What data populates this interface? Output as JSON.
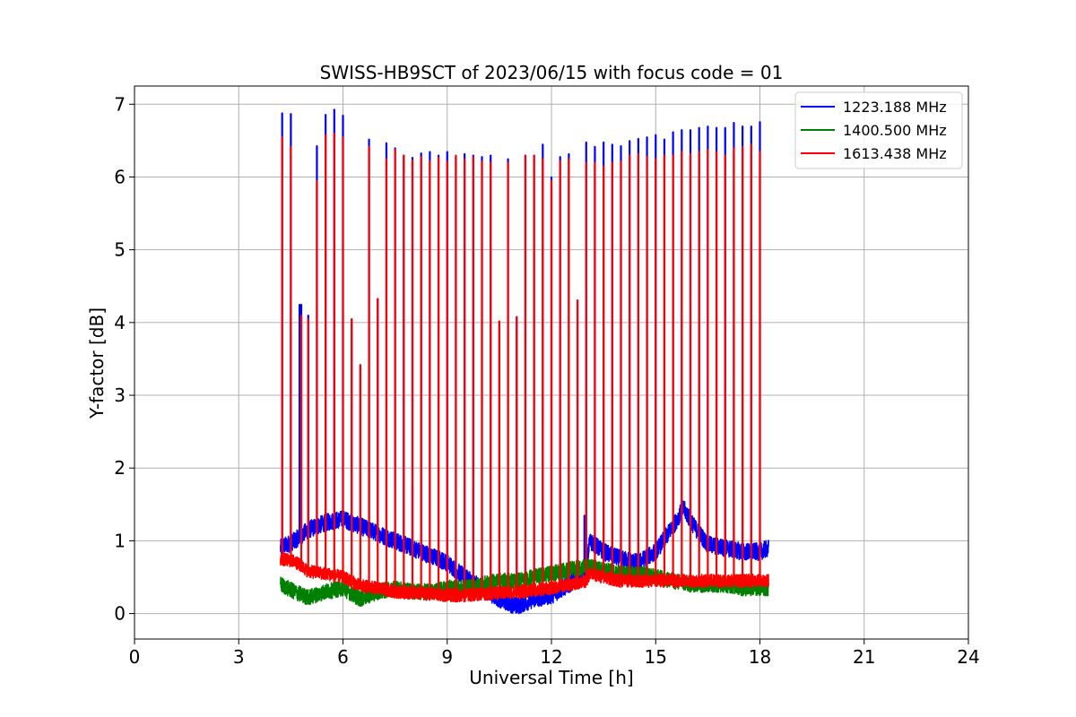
{
  "chart_data": {
    "type": "line",
    "title": "SWISS-HB9SCT of 2023/06/15 with focus code = 01",
    "xlabel": "Universal Time [h]",
    "ylabel": "Y-factor [dB]",
    "xlim": [
      0,
      24
    ],
    "ylim": [
      -0.35,
      7.25
    ],
    "xticks": [
      0,
      3,
      6,
      9,
      12,
      15,
      18,
      21,
      24
    ],
    "yticks": [
      0,
      1,
      2,
      3,
      4,
      5,
      6,
      7
    ],
    "grid": true,
    "legend_position": "top-right",
    "colors": {
      "1223.188 MHz": "#0000ff",
      "1400.500 MHz": "#008000",
      "1613.438 MHz": "#ff0000"
    },
    "series": [
      {
        "name": "1223.188 MHz",
        "color": "#0000ff",
        "baseline": [
          [
            4.2,
            0.9
          ],
          [
            4.6,
            1.0
          ],
          [
            5.0,
            1.15
          ],
          [
            5.5,
            1.25
          ],
          [
            6.0,
            1.3
          ],
          [
            6.5,
            1.2
          ],
          [
            7.0,
            1.1
          ],
          [
            7.5,
            1.0
          ],
          [
            8.0,
            0.9
          ],
          [
            8.5,
            0.8
          ],
          [
            9.0,
            0.7
          ],
          [
            9.5,
            0.5
          ],
          [
            10.0,
            0.35
          ],
          [
            10.5,
            0.2
          ],
          [
            11.0,
            0.1
          ],
          [
            11.5,
            0.2
          ],
          [
            12.0,
            0.25
          ],
          [
            12.5,
            0.4
          ],
          [
            13.0,
            0.6
          ],
          [
            13.1,
            1.0
          ],
          [
            13.5,
            0.85
          ],
          [
            14.0,
            0.75
          ],
          [
            14.5,
            0.7
          ],
          [
            15.0,
            0.85
          ],
          [
            15.5,
            1.2
          ],
          [
            15.8,
            1.45
          ],
          [
            16.1,
            1.2
          ],
          [
            16.5,
            0.95
          ],
          [
            17.0,
            0.9
          ],
          [
            17.5,
            0.85
          ],
          [
            18.0,
            0.85
          ],
          [
            18.25,
            0.9
          ]
        ],
        "noise": 0.12,
        "peaks": [
          [
            4.25,
            6.88
          ],
          [
            4.5,
            6.87
          ],
          [
            4.8,
            4.25
          ],
          [
            5.0,
            4.1
          ],
          [
            5.25,
            6.43
          ],
          [
            5.5,
            6.86
          ],
          [
            5.75,
            6.93
          ],
          [
            6.0,
            6.85
          ],
          [
            6.25,
            4.05
          ],
          [
            6.5,
            3.42
          ],
          [
            6.75,
            6.52
          ],
          [
            7.0,
            4.33
          ],
          [
            7.25,
            6.47
          ],
          [
            7.5,
            6.4
          ],
          [
            7.75,
            6.3
          ],
          [
            8.0,
            6.27
          ],
          [
            8.25,
            6.33
          ],
          [
            8.5,
            6.35
          ],
          [
            8.75,
            6.3
          ],
          [
            9.0,
            6.35
          ],
          [
            9.25,
            6.28
          ],
          [
            9.5,
            6.32
          ],
          [
            9.75,
            6.3
          ],
          [
            10.0,
            6.28
          ],
          [
            10.25,
            6.3
          ],
          [
            10.5,
            4.02
          ],
          [
            10.75,
            6.25
          ],
          [
            11.0,
            4.08
          ],
          [
            11.25,
            6.3
          ],
          [
            11.5,
            6.3
          ],
          [
            11.75,
            6.45
          ],
          [
            12.0,
            6.0
          ],
          [
            12.25,
            6.28
          ],
          [
            12.5,
            6.32
          ],
          [
            12.75,
            4.31
          ],
          [
            13.0,
            6.48
          ],
          [
            13.25,
            6.42
          ],
          [
            13.5,
            6.48
          ],
          [
            13.75,
            6.45
          ],
          [
            14.0,
            6.43
          ],
          [
            14.25,
            6.5
          ],
          [
            14.5,
            6.53
          ],
          [
            14.75,
            6.55
          ],
          [
            15.0,
            6.58
          ],
          [
            15.25,
            6.52
          ],
          [
            15.5,
            6.62
          ],
          [
            15.75,
            6.65
          ],
          [
            16.0,
            6.65
          ],
          [
            16.25,
            6.68
          ],
          [
            16.5,
            6.7
          ],
          [
            16.75,
            6.68
          ],
          [
            17.0,
            6.68
          ],
          [
            17.25,
            6.75
          ],
          [
            17.5,
            6.7
          ],
          [
            17.75,
            6.7
          ],
          [
            18.0,
            6.76
          ]
        ]
      },
      {
        "name": "1400.500 MHz",
        "color": "#008000",
        "baseline": [
          [
            4.2,
            0.4
          ],
          [
            4.6,
            0.3
          ],
          [
            5.0,
            0.22
          ],
          [
            5.5,
            0.3
          ],
          [
            6.0,
            0.35
          ],
          [
            6.5,
            0.2
          ],
          [
            7.0,
            0.3
          ],
          [
            7.5,
            0.35
          ],
          [
            8.0,
            0.3
          ],
          [
            8.5,
            0.3
          ],
          [
            9.0,
            0.35
          ],
          [
            9.5,
            0.35
          ],
          [
            10.0,
            0.4
          ],
          [
            10.5,
            0.45
          ],
          [
            11.0,
            0.45
          ],
          [
            11.5,
            0.5
          ],
          [
            12.0,
            0.55
          ],
          [
            12.5,
            0.6
          ],
          [
            13.0,
            0.65
          ],
          [
            13.5,
            0.6
          ],
          [
            14.0,
            0.55
          ],
          [
            14.5,
            0.55
          ],
          [
            15.0,
            0.5
          ],
          [
            15.5,
            0.45
          ],
          [
            16.0,
            0.4
          ],
          [
            16.5,
            0.4
          ],
          [
            17.0,
            0.4
          ],
          [
            17.5,
            0.35
          ],
          [
            18.0,
            0.35
          ],
          [
            18.25,
            0.35
          ]
        ],
        "noise": 0.11,
        "peaks": []
      },
      {
        "name": "1613.438 MHz",
        "color": "#ff0000",
        "baseline": [
          [
            4.2,
            0.75
          ],
          [
            4.6,
            0.72
          ],
          [
            5.0,
            0.58
          ],
          [
            5.5,
            0.55
          ],
          [
            6.0,
            0.5
          ],
          [
            6.5,
            0.38
          ],
          [
            7.0,
            0.35
          ],
          [
            7.5,
            0.3
          ],
          [
            8.0,
            0.28
          ],
          [
            8.5,
            0.27
          ],
          [
            9.0,
            0.25
          ],
          [
            9.5,
            0.25
          ],
          [
            10.0,
            0.27
          ],
          [
            10.5,
            0.28
          ],
          [
            11.0,
            0.3
          ],
          [
            11.5,
            0.32
          ],
          [
            12.0,
            0.35
          ],
          [
            12.5,
            0.4
          ],
          [
            13.0,
            0.45
          ],
          [
            13.1,
            0.55
          ],
          [
            13.5,
            0.5
          ],
          [
            14.0,
            0.45
          ],
          [
            14.5,
            0.45
          ],
          [
            15.0,
            0.45
          ],
          [
            15.5,
            0.45
          ],
          [
            16.0,
            0.45
          ],
          [
            16.5,
            0.45
          ],
          [
            17.0,
            0.45
          ],
          [
            17.5,
            0.45
          ],
          [
            18.0,
            0.45
          ],
          [
            18.25,
            0.45
          ]
        ],
        "noise": 0.09,
        "peaks": [
          [
            4.25,
            6.55
          ],
          [
            4.5,
            6.42
          ],
          [
            4.8,
            4.1
          ],
          [
            5.0,
            4.05
          ],
          [
            5.25,
            5.95
          ],
          [
            5.5,
            6.58
          ],
          [
            5.75,
            6.6
          ],
          [
            6.0,
            6.55
          ],
          [
            6.25,
            4.05
          ],
          [
            6.5,
            3.42
          ],
          [
            6.75,
            6.42
          ],
          [
            7.0,
            4.33
          ],
          [
            7.25,
            6.25
          ],
          [
            7.5,
            6.38
          ],
          [
            7.75,
            6.3
          ],
          [
            8.0,
            6.23
          ],
          [
            8.25,
            6.28
          ],
          [
            8.5,
            6.22
          ],
          [
            8.75,
            6.27
          ],
          [
            9.0,
            6.22
          ],
          [
            9.25,
            6.3
          ],
          [
            9.5,
            6.25
          ],
          [
            9.75,
            6.28
          ],
          [
            10.0,
            6.22
          ],
          [
            10.25,
            6.2
          ],
          [
            10.5,
            4.02
          ],
          [
            10.75,
            6.2
          ],
          [
            11.0,
            4.08
          ],
          [
            11.25,
            6.3
          ],
          [
            11.5,
            6.3
          ],
          [
            11.75,
            6.25
          ],
          [
            12.0,
            5.95
          ],
          [
            12.25,
            6.22
          ],
          [
            12.5,
            6.25
          ],
          [
            12.75,
            4.31
          ],
          [
            13.0,
            6.2
          ],
          [
            13.25,
            6.2
          ],
          [
            13.5,
            6.15
          ],
          [
            13.75,
            6.2
          ],
          [
            14.0,
            6.22
          ],
          [
            14.25,
            6.3
          ],
          [
            14.5,
            6.32
          ],
          [
            14.75,
            6.28
          ],
          [
            15.0,
            6.25
          ],
          [
            15.25,
            6.3
          ],
          [
            15.5,
            6.3
          ],
          [
            15.75,
            6.35
          ],
          [
            16.0,
            6.32
          ],
          [
            16.25,
            6.35
          ],
          [
            16.5,
            6.38
          ],
          [
            16.75,
            6.35
          ],
          [
            17.0,
            6.3
          ],
          [
            17.25,
            6.4
          ],
          [
            17.5,
            6.42
          ],
          [
            17.75,
            6.45
          ],
          [
            18.0,
            6.35
          ]
        ]
      }
    ],
    "extra_spikes_1223": [
      [
        4.75,
        4.25
      ],
      [
        8.0,
        1.75
      ],
      [
        12.0,
        1.0
      ],
      [
        12.95,
        1.35
      ]
    ]
  }
}
